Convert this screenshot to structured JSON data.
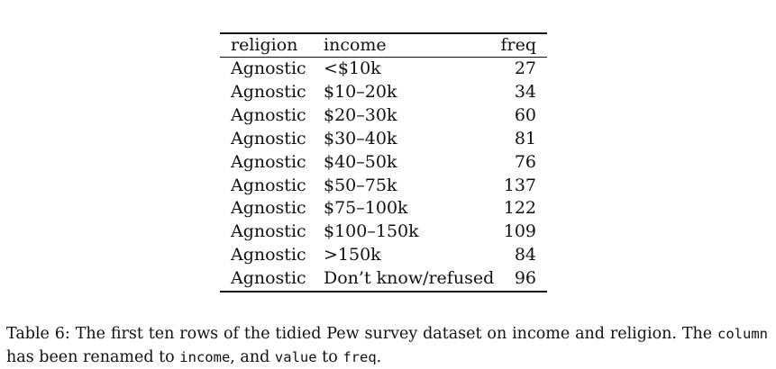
{
  "table": {
    "headers": {
      "religion": "religion",
      "income": "income",
      "freq": "freq"
    },
    "rows": [
      {
        "religion": "Agnostic",
        "income": "<$10k",
        "freq": "27"
      },
      {
        "religion": "Agnostic",
        "income": "$10–20k",
        "freq": "34"
      },
      {
        "religion": "Agnostic",
        "income": "$20–30k",
        "freq": "60"
      },
      {
        "religion": "Agnostic",
        "income": "$30–40k",
        "freq": "81"
      },
      {
        "religion": "Agnostic",
        "income": "$40–50k",
        "freq": "76"
      },
      {
        "religion": "Agnostic",
        "income": "$50–75k",
        "freq": "137"
      },
      {
        "religion": "Agnostic",
        "income": "$75–100k",
        "freq": "122"
      },
      {
        "religion": "Agnostic",
        "income": "$100–150k",
        "freq": "109"
      },
      {
        "religion": "Agnostic",
        "income": ">150k",
        "freq": "84"
      },
      {
        "religion": "Agnostic",
        "income": "Don’t know/refused",
        "freq": "96"
      }
    ]
  },
  "caption": {
    "label": "Table 6:",
    "text_1": "The first ten rows of the tidied Pew survey dataset on income and religion. The",
    "code_1": "column",
    "text_2": "has been renamed to",
    "code_2": "income",
    "text_3": ", and",
    "code_3": "value",
    "text_4": "to",
    "code_4": "freq",
    "text_5": "."
  }
}
